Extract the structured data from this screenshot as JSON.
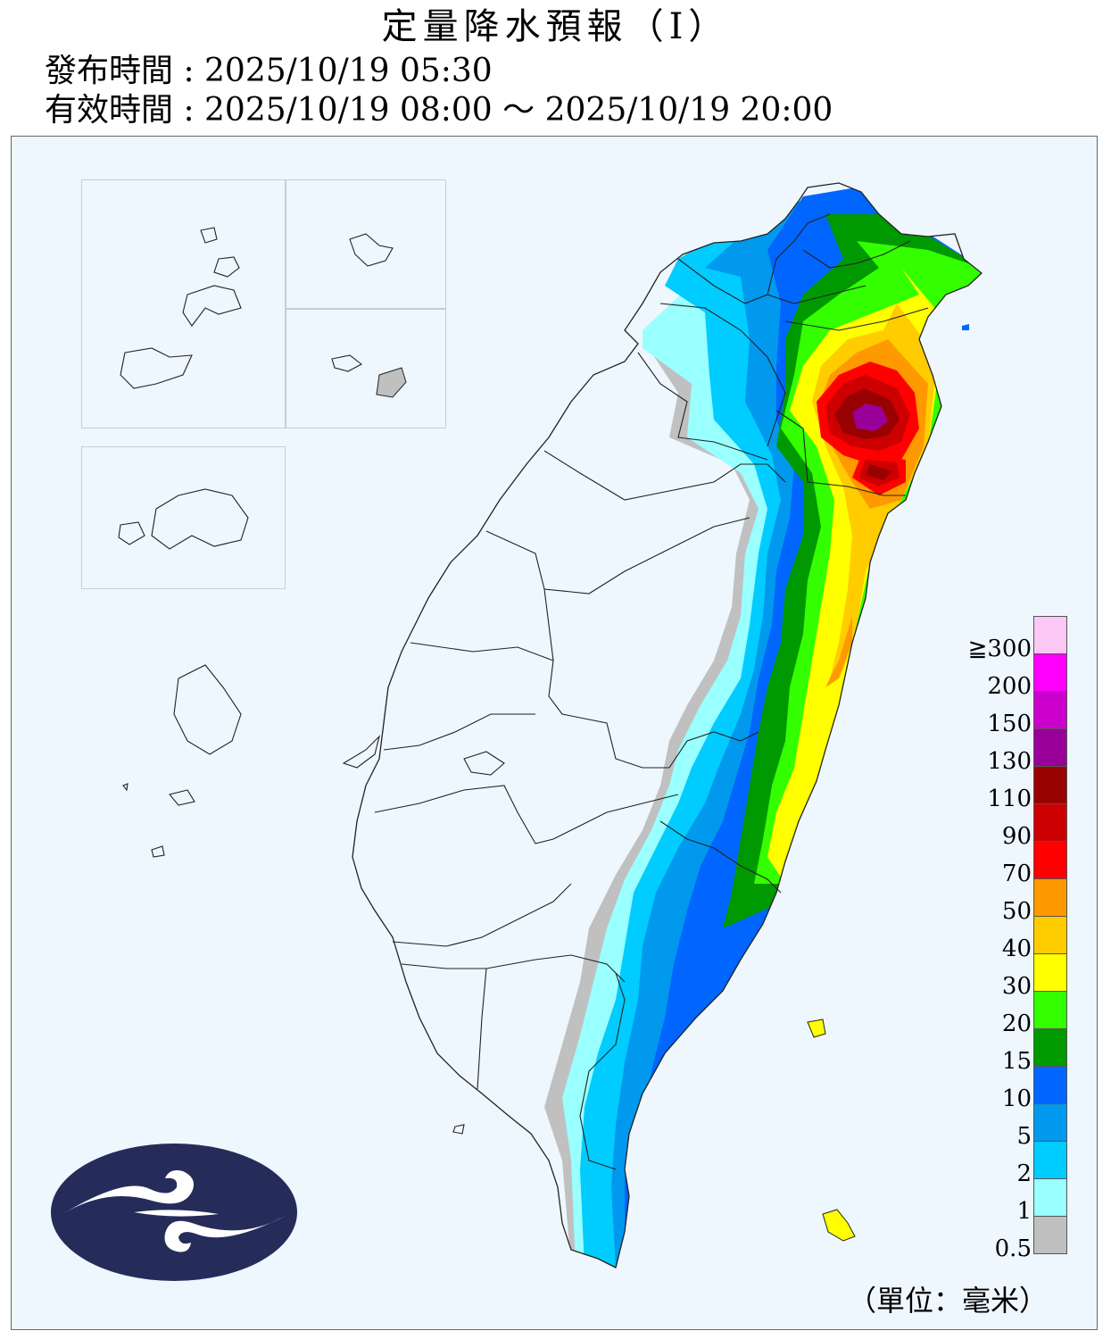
{
  "header": {
    "title": "定量降水預報（Ⅰ）",
    "issue_label": "發布時間 : ",
    "issue_time": "2025/10/19 05:30",
    "valid_label": "有效時間 : ",
    "valid_time": "2025/10/19 08:00 ～ 2025/10/19 20:00"
  },
  "legend": {
    "unit": "（單位：毫米）",
    "levels": [
      {
        "label": "≧300",
        "color": "#fbc8f5"
      },
      {
        "label": "200",
        "color": "#ff00ff"
      },
      {
        "label": "150",
        "color": "#cc00cc"
      },
      {
        "label": "130",
        "color": "#990099"
      },
      {
        "label": "110",
        "color": "#990000"
      },
      {
        "label": "90",
        "color": "#cc0000"
      },
      {
        "label": "70",
        "color": "#ff0000"
      },
      {
        "label": "50",
        "color": "#ff9900"
      },
      {
        "label": "40",
        "color": "#ffcc00"
      },
      {
        "label": "30",
        "color": "#ffff00"
      },
      {
        "label": "20",
        "color": "#33ff00"
      },
      {
        "label": "15",
        "color": "#009900"
      },
      {
        "label": "10",
        "color": "#0066ff"
      },
      {
        "label": "5",
        "color": "#0099ee"
      },
      {
        "label": "2",
        "color": "#00ccff"
      },
      {
        "label": "1",
        "color": "#99ffff"
      },
      {
        "label": "0.5",
        "color": "#c0c0c0"
      }
    ]
  }
}
